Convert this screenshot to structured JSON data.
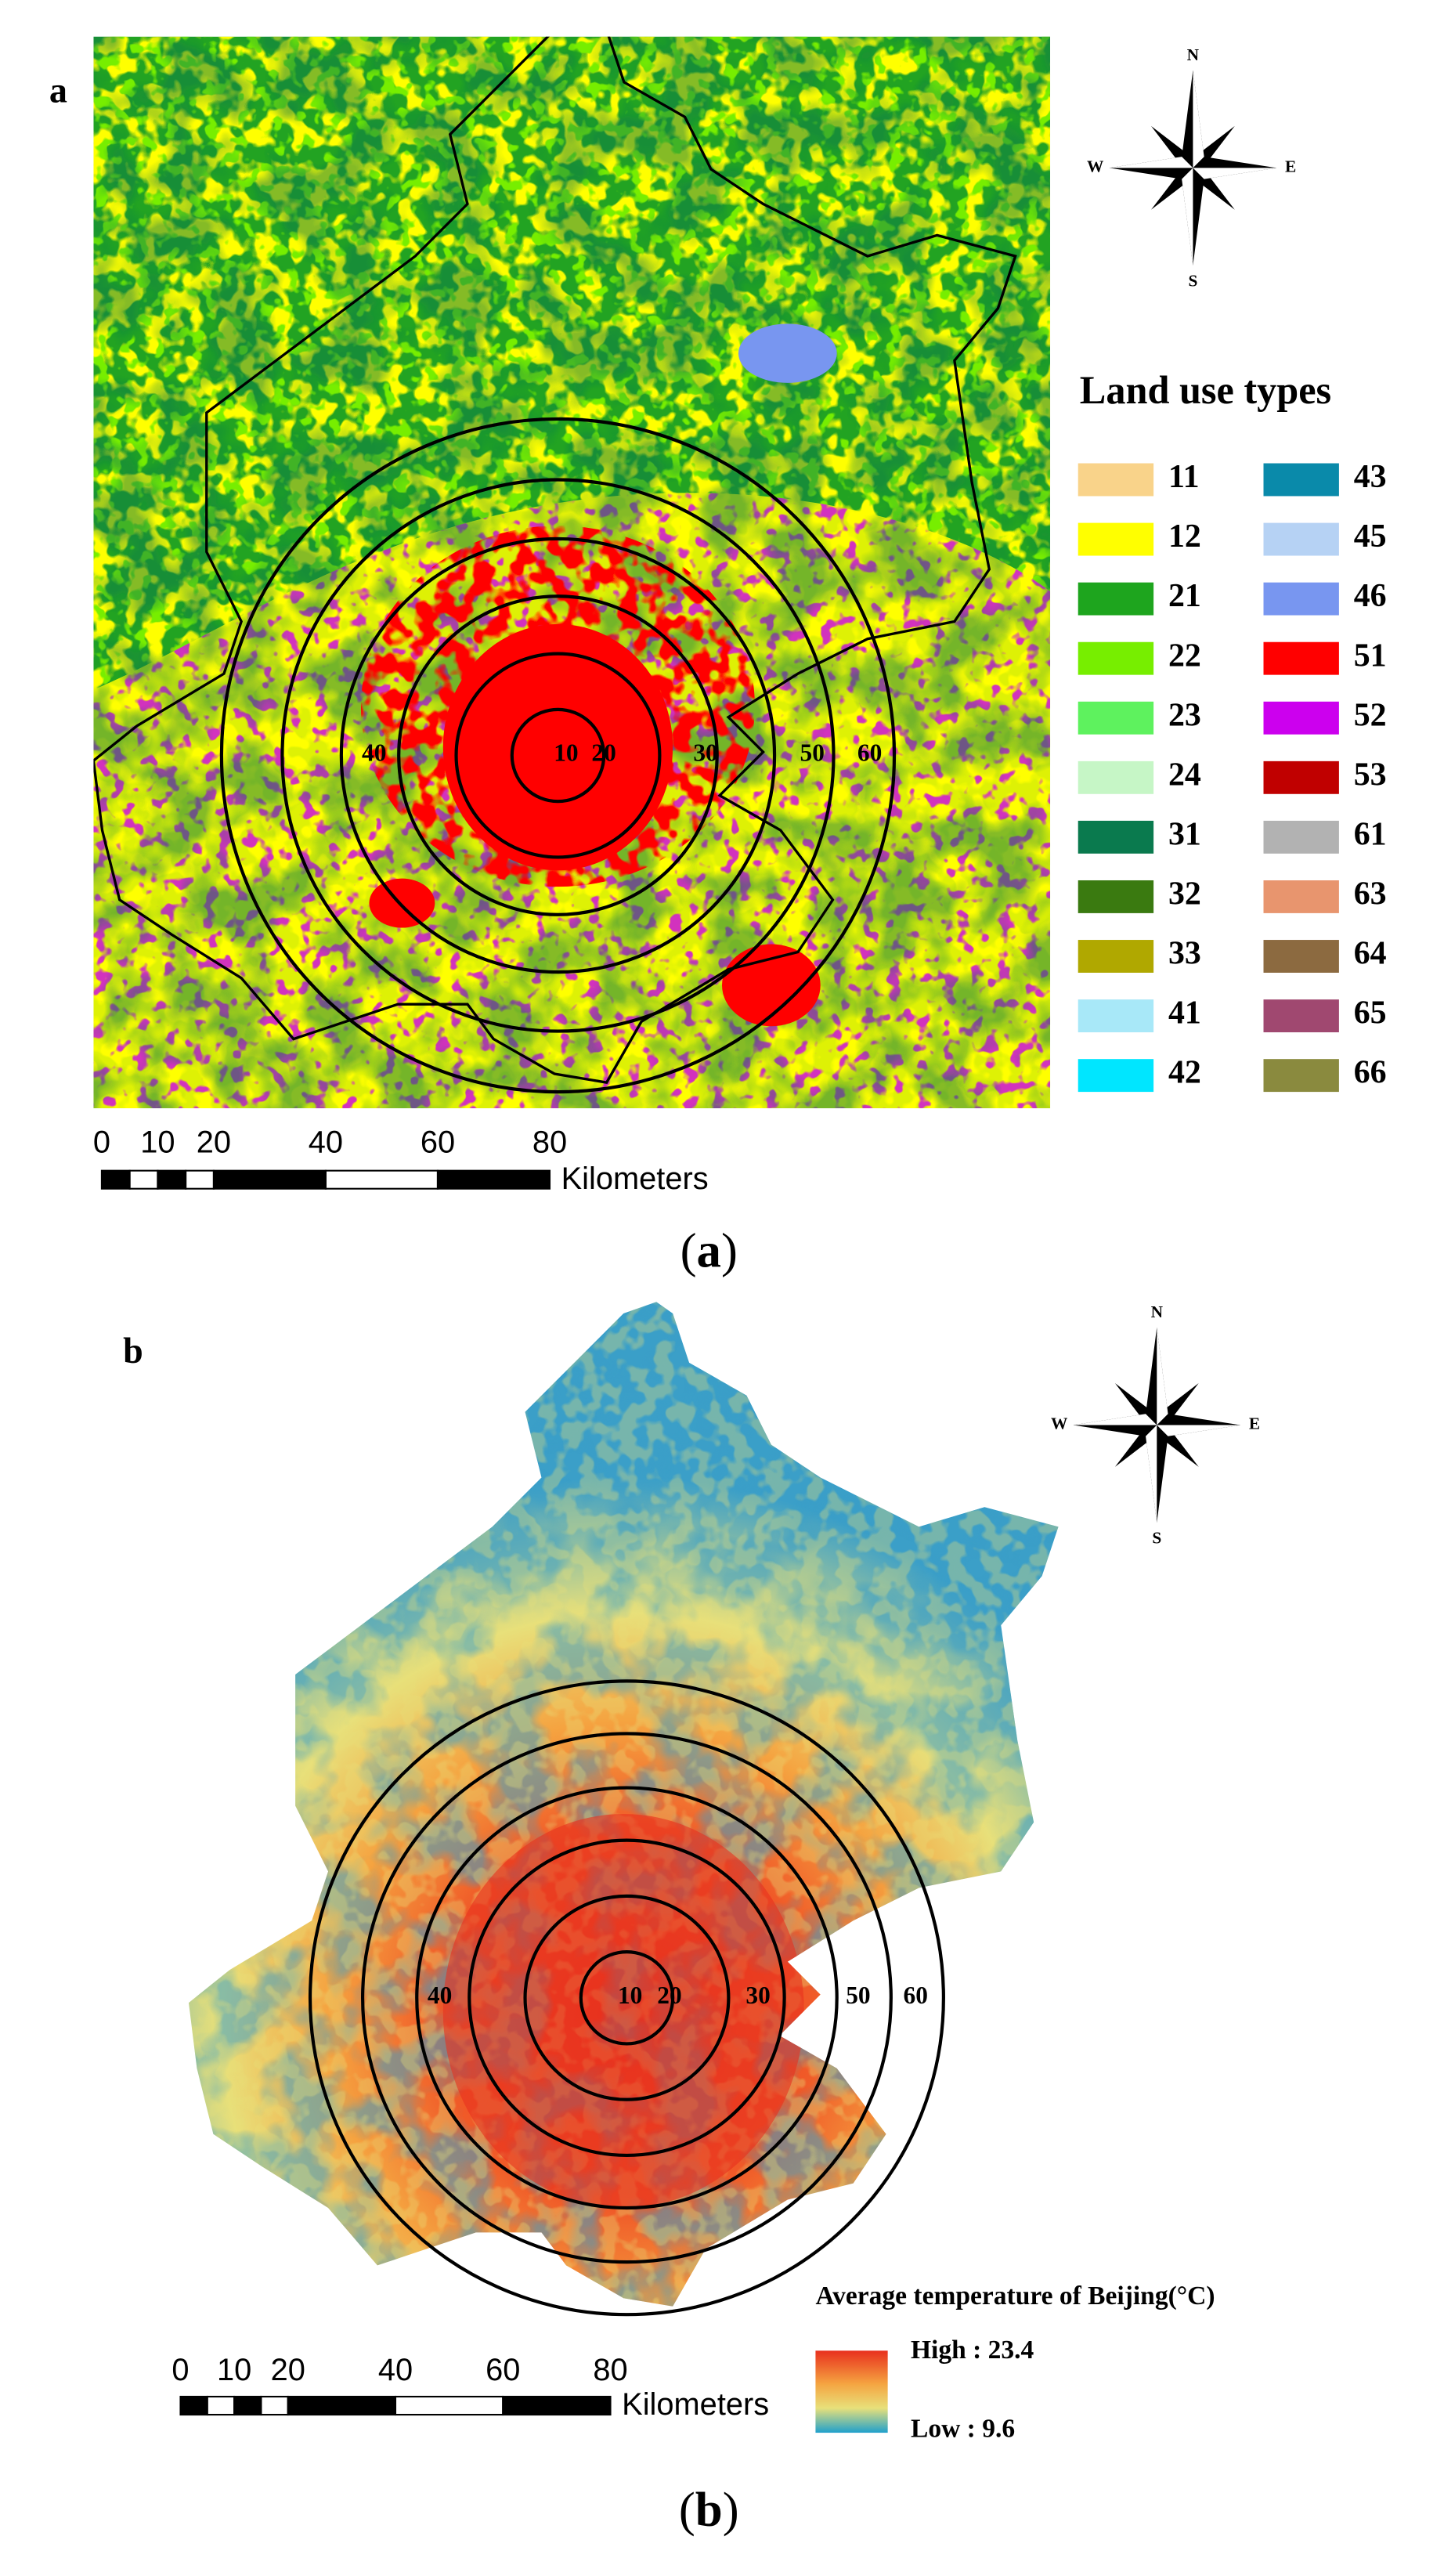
{
  "panels": [
    {
      "label": "a",
      "caption_open": "(",
      "caption_letter": "a",
      "caption_close": ")",
      "compass": {
        "n": "N",
        "s": "S",
        "e": "E",
        "w": "W"
      },
      "legend_title": "Land use types",
      "legend": [
        {
          "code": "11",
          "color": "#f9d38a"
        },
        {
          "code": "12",
          "color": "#ffff00"
        },
        {
          "code": "21",
          "color": "#1ea51e"
        },
        {
          "code": "22",
          "color": "#77ee00"
        },
        {
          "code": "23",
          "color": "#5ef25e"
        },
        {
          "code": "24",
          "color": "#c6f6c6"
        },
        {
          "code": "31",
          "color": "#0a7a4e"
        },
        {
          "code": "32",
          "color": "#3a7a10"
        },
        {
          "code": "33",
          "color": "#b0a800"
        },
        {
          "code": "41",
          "color": "#a8e8f8"
        },
        {
          "code": "42",
          "color": "#00e6ff"
        },
        {
          "code": "43",
          "color": "#0a8aaa"
        },
        {
          "code": "45",
          "color": "#b6d2f4"
        },
        {
          "code": "46",
          "color": "#7896f0"
        },
        {
          "code": "51",
          "color": "#ff0000"
        },
        {
          "code": "52",
          "color": "#cc00ee"
        },
        {
          "code": "53",
          "color": "#c00000"
        },
        {
          "code": "61",
          "color": "#b2b2b2"
        },
        {
          "code": "63",
          "color": "#e8956e"
        },
        {
          "code": "64",
          "color": "#8c6a40"
        },
        {
          "code": "65",
          "color": "#a04870"
        },
        {
          "code": "66",
          "color": "#8a8a3e"
        }
      ],
      "ring_labels": [
        "10",
        "20",
        "30",
        "40",
        "50",
        "60"
      ],
      "scale_ticks": [
        "0",
        "10",
        "20",
        "40",
        "60",
        "80"
      ],
      "scale_unit": "Kilometers"
    },
    {
      "label": "b",
      "caption_open": "(",
      "caption_letter": "b",
      "caption_close": ")",
      "compass": {
        "n": "N",
        "s": "S",
        "e": "E",
        "w": "W"
      },
      "legend_title": "Average temperature of Beijing(°C)",
      "legend_high": "High : 23.4",
      "legend_low": "Low : 9.6",
      "ring_labels": [
        "10",
        "20",
        "30",
        "40",
        "50",
        "60"
      ],
      "scale_ticks": [
        "0",
        "10",
        "20",
        "40",
        "60",
        "80"
      ],
      "scale_unit": "Kilometers"
    }
  ]
}
